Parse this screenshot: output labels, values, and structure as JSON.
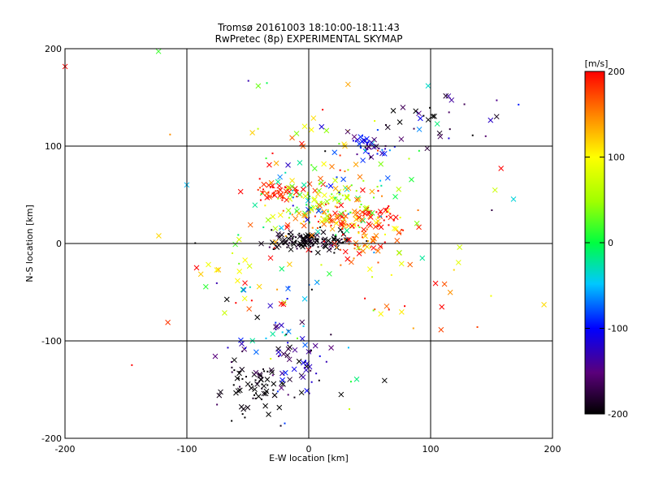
{
  "chart_data": {
    "type": "scatter",
    "title": "Tromsø 20161003 18:10:00-18:11:43",
    "subtitle": "RwPretec (8p) EXPERIMENTAL SKYMAP",
    "xlabel": "E-W location [km]",
    "ylabel": "N-S location [km]",
    "xlim": [
      -200,
      200
    ],
    "ylim": [
      -200,
      200
    ],
    "xticks": [
      "-200",
      "-100",
      "0",
      "100",
      "200"
    ],
    "yticks": [
      "-200",
      "-100",
      "0",
      "100",
      "200"
    ],
    "grid": true,
    "grid_lines_x": [
      -100,
      0,
      100
    ],
    "grid_lines_y": [
      -100,
      0,
      100
    ],
    "colorbar": {
      "label": "[m/s]",
      "range": [
        -200,
        200
      ],
      "ticks": [
        "200",
        "100",
        "0",
        "-100",
        "-200"
      ],
      "colormap": "black-purple-blue-cyan-green-yellow-red"
    },
    "clusters": [
      {
        "x": 0,
        "y": 3,
        "sx": 18,
        "sy": 5,
        "n": 120,
        "v": -200,
        "sv": 15
      },
      {
        "x": 20,
        "y": 25,
        "sx": 18,
        "sy": 8,
        "n": 70,
        "v": 150,
        "sv": 50
      },
      {
        "x": -25,
        "y": 52,
        "sx": 10,
        "sy": 5,
        "n": 50,
        "v": 190,
        "sv": 20
      },
      {
        "x": 15,
        "y": 45,
        "sx": 22,
        "sy": 12,
        "n": 90,
        "v": 40,
        "sv": 60
      },
      {
        "x": 50,
        "y": 100,
        "sx": 8,
        "sy": 6,
        "n": 45,
        "v": -110,
        "sv": 30
      },
      {
        "x": 40,
        "y": 5,
        "sx": 15,
        "sy": 12,
        "n": 60,
        "v": 170,
        "sv": 30
      },
      {
        "x": -45,
        "y": -150,
        "sx": 15,
        "sy": 15,
        "n": 70,
        "v": -200,
        "sv": 15
      },
      {
        "x": -5,
        "y": -130,
        "sx": 12,
        "sy": 15,
        "n": 40,
        "v": -150,
        "sv": 40
      },
      {
        "x": -30,
        "y": -90,
        "sx": 20,
        "sy": 25,
        "n": 40,
        "v": -120,
        "sv": 80
      },
      {
        "x": 60,
        "y": 28,
        "sx": 6,
        "sy": 5,
        "n": 25,
        "v": 200,
        "sv": 10
      },
      {
        "x": 15,
        "y": 70,
        "sx": 40,
        "sy": 35,
        "n": 80,
        "v": 90,
        "sv": 80
      },
      {
        "x": 80,
        "y": 130,
        "sx": 40,
        "sy": 15,
        "n": 35,
        "v": -180,
        "sv": 40
      },
      {
        "x": 75,
        "y": -30,
        "sx": 30,
        "sy": 35,
        "n": 35,
        "v": 150,
        "sv": 70
      },
      {
        "x": -50,
        "y": -30,
        "sx": 30,
        "sy": 30,
        "n": 35,
        "v": 120,
        "sv": 90
      },
      {
        "x": 0,
        "y": 0,
        "sx": 110,
        "sy": 110,
        "n": 60,
        "v": 0,
        "sv": 170
      }
    ]
  }
}
